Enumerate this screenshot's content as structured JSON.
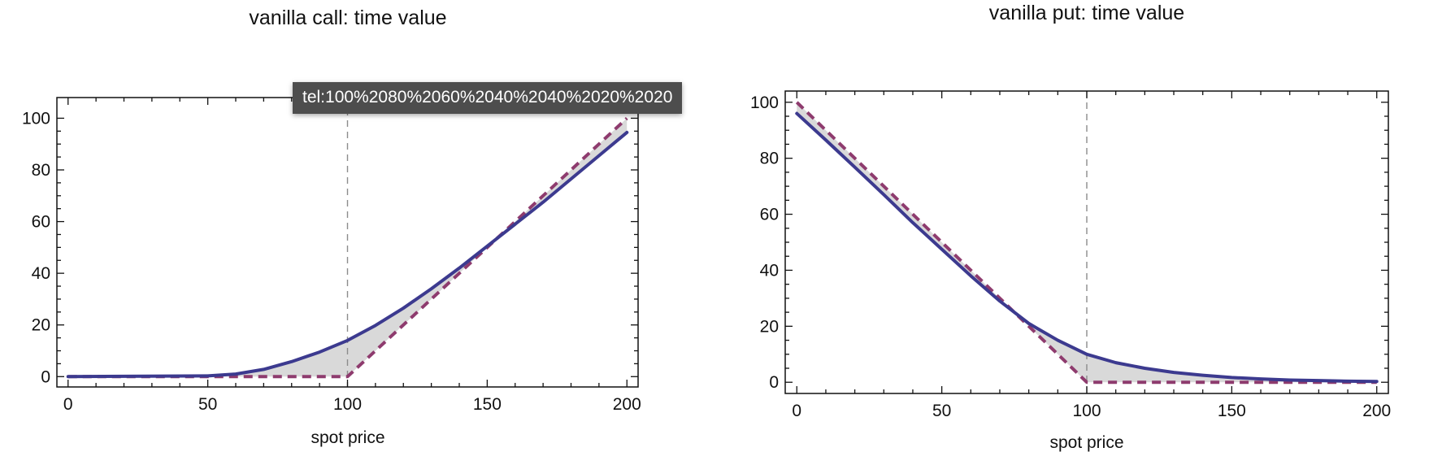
{
  "tooltip": {
    "text": "tel:100%2080%2060%2040%2040%2020%2020"
  },
  "colors": {
    "option_value": "#3c3a8f",
    "intrinsic_value": "#8e3b6e",
    "time_value_fill": "#d9d9d9",
    "strike_marker": "#8c8c8c"
  },
  "chart_data": [
    {
      "type": "area",
      "title": "vanilla call: time value",
      "xlabel": "spot price",
      "ylabel": "",
      "xlim": [
        -4,
        204
      ],
      "ylim": [
        -4,
        108
      ],
      "xticks": [
        0,
        50,
        100,
        150,
        200
      ],
      "yticks": [
        0,
        20,
        40,
        60,
        80,
        100
      ],
      "strike": 100,
      "grid": false,
      "series": [
        {
          "style": "solid",
          "x": [
            0,
            50,
            60,
            70,
            80,
            90,
            100,
            110,
            120,
            130,
            140,
            150,
            160,
            170,
            180,
            190,
            200
          ],
          "values": [
            0,
            0.3,
            1.0,
            2.8,
            5.8,
            9.5,
            14.0,
            19.8,
            26.5,
            34.0,
            42.0,
            50.5,
            59.0,
            67.5,
            76.5,
            85.5,
            94.5
          ]
        },
        {
          "style": "dashed",
          "x": [
            0,
            100,
            200
          ],
          "values": [
            0,
            0,
            100
          ]
        }
      ]
    },
    {
      "type": "area",
      "title": "vanilla put: time value",
      "xlabel": "spot price",
      "ylabel": "",
      "xlim": [
        -4,
        204
      ],
      "ylim": [
        -4,
        104
      ],
      "xticks": [
        0,
        50,
        100,
        150,
        200
      ],
      "yticks": [
        0,
        20,
        40,
        60,
        80,
        100
      ],
      "strike": 100,
      "grid": false,
      "series": [
        {
          "style": "solid",
          "x": [
            0,
            10,
            20,
            30,
            40,
            50,
            60,
            70,
            80,
            90,
            100,
            110,
            120,
            130,
            140,
            150,
            160,
            170,
            180,
            190,
            200
          ],
          "values": [
            96,
            86.5,
            76.8,
            67,
            57,
            47.5,
            38,
            29,
            21,
            15,
            10,
            7,
            5,
            3.5,
            2.5,
            1.7,
            1.2,
            0.8,
            0.6,
            0.4,
            0.3
          ]
        },
        {
          "style": "dashed",
          "x": [
            0,
            100,
            200
          ],
          "values": [
            100,
            0,
            0
          ]
        }
      ]
    }
  ]
}
